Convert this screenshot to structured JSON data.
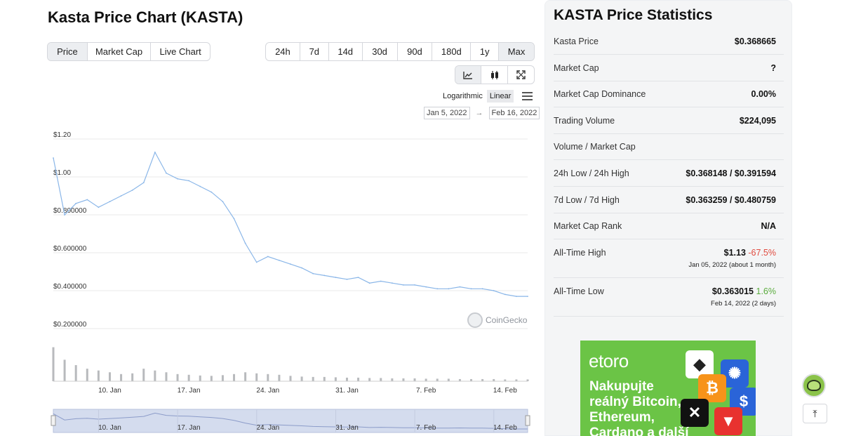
{
  "chart_title": "Kasta Price Chart (KASTA)",
  "view_tabs": [
    "Price",
    "Market Cap",
    "Live Chart"
  ],
  "range_tabs": [
    "24h",
    "7d",
    "14d",
    "30d",
    "90d",
    "180d",
    "1y",
    "Max"
  ],
  "chart_tools": {
    "icons": [
      "line-chart-icon",
      "candlestick-icon",
      "fullscreen-icon"
    ],
    "logarithmic": "Logarithmic",
    "linear": "Linear"
  },
  "date_range": {
    "from": "Jan 5, 2022",
    "arrow": "→",
    "to": "Feb 16, 2022"
  },
  "watermark": "CoinGecko",
  "chart_data": {
    "type": "line",
    "y_ticks": [
      "$1.20",
      "$1.00",
      "$0.800000",
      "$0.600000",
      "$0.400000",
      "$0.200000"
    ],
    "ylim": [
      0.2,
      1.2
    ],
    "x_ticks": [
      "10. Jan",
      "17. Jan",
      "24. Jan",
      "31. Jan",
      "7. Feb",
      "14. Feb"
    ],
    "x": [
      "2022-01-05",
      "2022-01-06",
      "2022-01-07",
      "2022-01-08",
      "2022-01-09",
      "2022-01-10",
      "2022-01-11",
      "2022-01-12",
      "2022-01-13",
      "2022-01-14",
      "2022-01-15",
      "2022-01-16",
      "2022-01-17",
      "2022-01-18",
      "2022-01-19",
      "2022-01-20",
      "2022-01-21",
      "2022-01-22",
      "2022-01-23",
      "2022-01-24",
      "2022-01-25",
      "2022-01-26",
      "2022-01-27",
      "2022-01-28",
      "2022-01-29",
      "2022-01-30",
      "2022-01-31",
      "2022-02-01",
      "2022-02-02",
      "2022-02-03",
      "2022-02-04",
      "2022-02-05",
      "2022-02-06",
      "2022-02-07",
      "2022-02-08",
      "2022-02-09",
      "2022-02-10",
      "2022-02-11",
      "2022-02-12",
      "2022-02-13",
      "2022-02-14",
      "2022-02-15",
      "2022-02-16"
    ],
    "price": [
      1.1,
      0.8,
      0.86,
      0.88,
      0.84,
      0.87,
      0.9,
      0.93,
      0.97,
      1.13,
      1.02,
      0.99,
      0.98,
      0.95,
      0.92,
      0.87,
      0.78,
      0.65,
      0.55,
      0.58,
      0.56,
      0.54,
      0.52,
      0.49,
      0.48,
      0.47,
      0.46,
      0.47,
      0.44,
      0.45,
      0.44,
      0.43,
      0.43,
      0.42,
      0.41,
      0.41,
      0.42,
      0.41,
      0.41,
      0.4,
      0.38,
      0.37,
      0.37
    ],
    "volume": [
      0.95,
      0.6,
      0.45,
      0.35,
      0.3,
      0.25,
      0.2,
      0.22,
      0.35,
      0.3,
      0.25,
      0.2,
      0.18,
      0.16,
      0.15,
      0.17,
      0.2,
      0.25,
      0.22,
      0.2,
      0.18,
      0.15,
      0.13,
      0.12,
      0.12,
      0.11,
      0.1,
      0.1,
      0.09,
      0.09,
      0.08,
      0.08,
      0.08,
      0.07,
      0.07,
      0.07,
      0.06,
      0.06,
      0.06,
      0.06,
      0.05,
      0.05,
      0.05
    ]
  },
  "stats": {
    "title": "KASTA Price Statistics",
    "rows": [
      {
        "label": "Kasta Price",
        "value": "$0.368665"
      },
      {
        "label": "Market Cap",
        "value": "?"
      },
      {
        "label": "Market Cap Dominance",
        "value": "0.00%"
      },
      {
        "label": "Trading Volume",
        "value": "$224,095"
      },
      {
        "label": "Volume / Market Cap",
        "value": ""
      },
      {
        "label": "24h Low / 24h High",
        "value": "$0.368148 / $0.391594"
      },
      {
        "label": "7d Low / 7d High",
        "value": "$0.363259 / $0.480759"
      },
      {
        "label": "Market Cap Rank",
        "value": "N/A"
      }
    ],
    "ath": {
      "label": "All-Time High",
      "value": "$1.13",
      "change": "-67.5%",
      "date": "Jan 05, 2022 (about 1 month)"
    },
    "atl": {
      "label": "All-Time Low",
      "value": "$0.363015",
      "change": "1.6%",
      "date": "Feb 14, 2022 (2 days)"
    }
  },
  "ad": {
    "brand": "etoro",
    "copy": [
      "Nakupujte",
      "reálný Bitcoin,",
      "Ethereum,",
      "Cardano a další"
    ]
  },
  "colors": {
    "line": "#8ab6e8",
    "volume": "#b8babd",
    "navigator": "#d4dcee",
    "ath_change": "#e04b3f",
    "atl_change": "#5aac3d",
    "ad_bg": "#6bc446"
  }
}
